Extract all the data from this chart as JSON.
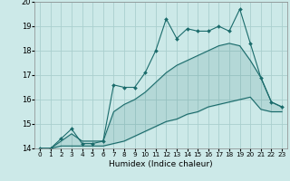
{
  "xlabel": "Humidex (Indice chaleur)",
  "xlim": [
    -0.5,
    23.5
  ],
  "ylim": [
    14,
    20
  ],
  "xticks": [
    0,
    1,
    2,
    3,
    4,
    5,
    6,
    7,
    8,
    9,
    10,
    11,
    12,
    13,
    14,
    15,
    16,
    17,
    18,
    19,
    20,
    21,
    22,
    23
  ],
  "yticks": [
    14,
    15,
    16,
    17,
    18,
    19,
    20
  ],
  "background_color": "#cce9e8",
  "grid_color": "#aacfce",
  "line_color": "#1a6b6b",
  "hours": [
    0,
    1,
    2,
    3,
    4,
    5,
    6,
    7,
    8,
    9,
    10,
    11,
    12,
    13,
    14,
    15,
    16,
    17,
    18,
    19,
    20,
    21,
    22,
    23
  ],
  "line_jagged": [
    14.0,
    14.0,
    14.4,
    14.8,
    14.2,
    14.2,
    14.3,
    16.6,
    16.5,
    16.5,
    17.1,
    18.0,
    19.3,
    18.5,
    18.9,
    18.8,
    18.8,
    19.0,
    18.8,
    19.7,
    18.3,
    16.9,
    15.9,
    15.7
  ],
  "line_upper": [
    14.0,
    14.0,
    14.3,
    14.6,
    14.3,
    14.3,
    14.3,
    15.5,
    15.8,
    16.0,
    16.3,
    16.7,
    17.1,
    17.4,
    17.6,
    17.8,
    18.0,
    18.2,
    18.3,
    18.2,
    17.6,
    16.9,
    15.9,
    15.7
  ],
  "line_lower": [
    14.0,
    14.0,
    14.1,
    14.1,
    14.1,
    14.1,
    14.1,
    14.2,
    14.3,
    14.5,
    14.7,
    14.9,
    15.1,
    15.2,
    15.4,
    15.5,
    15.7,
    15.8,
    15.9,
    16.0,
    16.1,
    15.6,
    15.5,
    15.5
  ]
}
